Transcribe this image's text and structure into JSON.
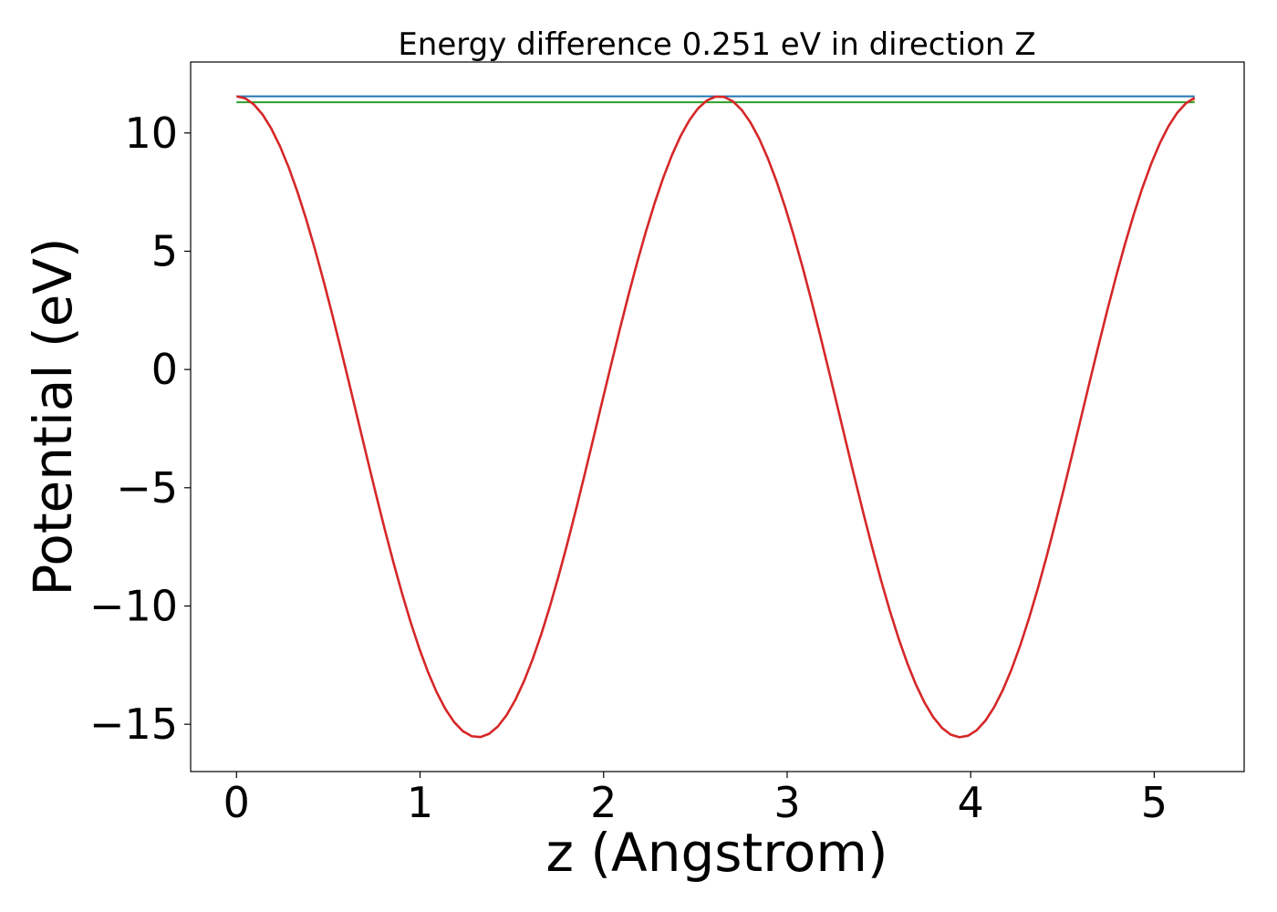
{
  "chart_data": {
    "type": "line",
    "title": "Energy difference 0.251 eV in direction Z",
    "xlabel": "z (Angstrom)",
    "ylabel": "Potential (eV)",
    "xlim": [
      -0.25,
      5.49
    ],
    "ylim": [
      -17.0,
      13.0
    ],
    "x_ticks": [
      0,
      1,
      2,
      3,
      4,
      5
    ],
    "y_ticks": [
      10,
      5,
      0,
      -5,
      -10,
      -15
    ],
    "x_tick_labels": [
      "0",
      "1",
      "2",
      "3",
      "4",
      "5"
    ],
    "y_tick_labels": [
      "10",
      "5",
      "0",
      "−5",
      "−10",
      "−15"
    ],
    "grid": false,
    "legend": "none",
    "potential_curve": {
      "color": "#d62728",
      "z_start": 0.0,
      "z_end": 5.22,
      "period": 2.63,
      "max_potential": 11.55,
      "min_potential": -15.55,
      "minima_at_z": [
        1.32,
        3.95
      ],
      "maxima_at_z": [
        0.0,
        2.63,
        5.22
      ]
    },
    "series": [
      {
        "color": "#1f77b4",
        "x": [
          0.0,
          5.22
        ],
        "values": [
          11.55,
          11.55
        ]
      },
      {
        "color": "#2ca02c",
        "x": [
          0.0,
          5.22
        ],
        "values": [
          11.3,
          11.3
        ]
      },
      {
        "color": "#ff7f0e",
        "x": [
          5.2,
          5.22
        ],
        "values": [
          11.4,
          11.4
        ]
      }
    ]
  }
}
